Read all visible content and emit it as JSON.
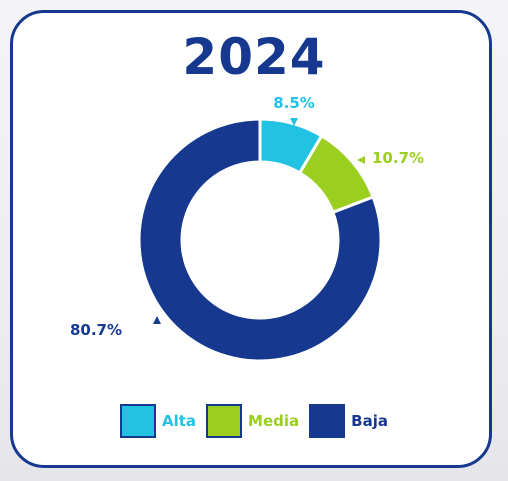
{
  "chart_data": {
    "type": "pie",
    "title": "2024",
    "donut": true,
    "categories": [
      "Alta",
      "Media",
      "Baja"
    ],
    "values": [
      8.5,
      10.7,
      80.7
    ],
    "data_labels": [
      "8.5%",
      "10.7%",
      "80.7%"
    ],
    "colors": [
      "#22c2e3",
      "#9bcf1f",
      "#16398f"
    ],
    "legend_position": "bottom"
  },
  "colors": {
    "border": "#16398f",
    "alta": "#22c2e3",
    "media": "#9bcf1f",
    "baja": "#16398f"
  }
}
